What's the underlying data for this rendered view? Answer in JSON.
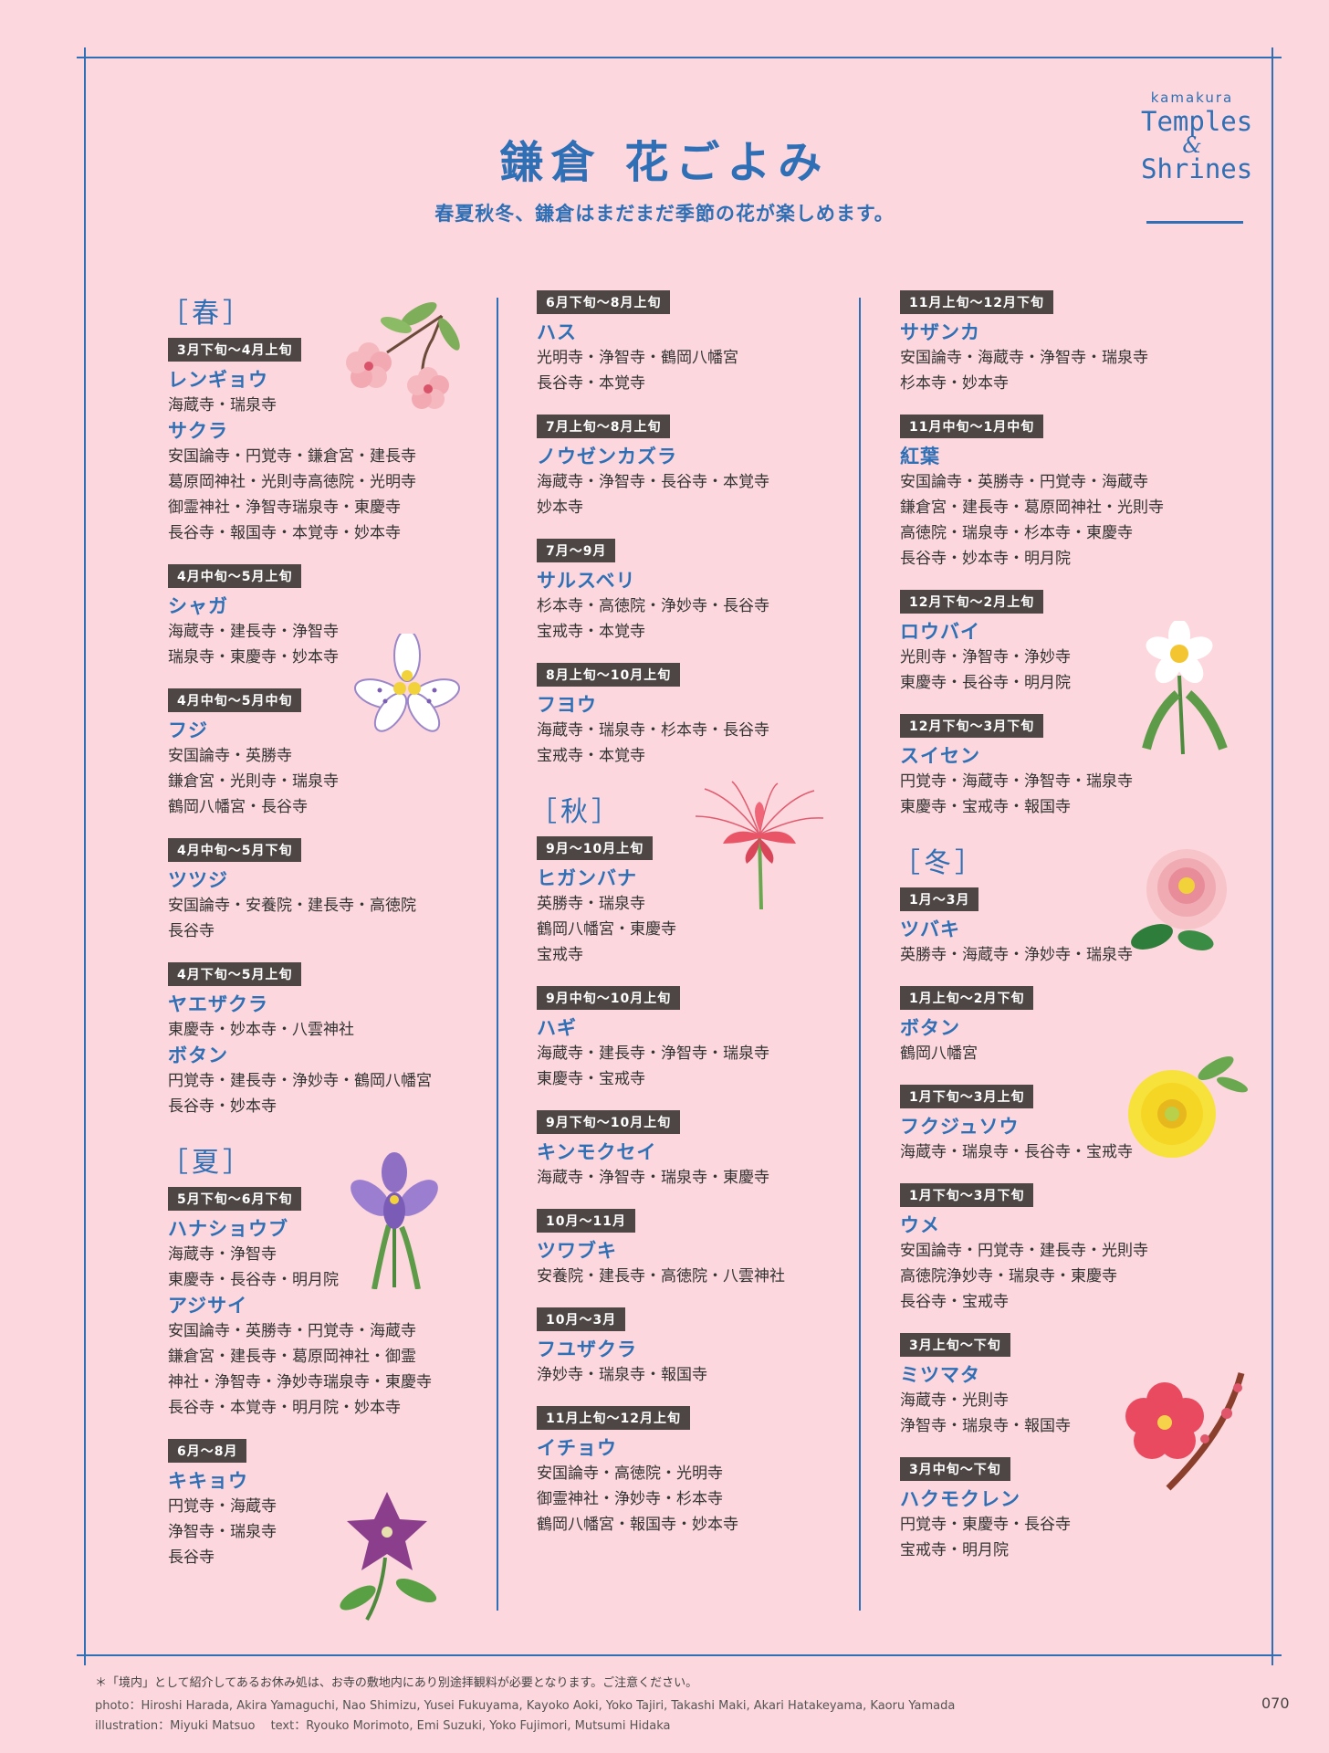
{
  "header": {
    "title": "鎌倉 花ごよみ",
    "subtitle": "春夏秋冬、鎌倉はまだまだ季節の花が楽しめます。",
    "logo": {
      "small": "kamakura",
      "line1": "Temples",
      "amp": "&",
      "line2": "Shrines"
    }
  },
  "columns": [
    {
      "blocks": [
        {
          "season": "［春］",
          "entries": [
            {
              "period": "3月下旬～4月上旬",
              "flowers": [
                {
                  "name": "レンギョウ",
                  "places": "海蔵寺・瑞泉寺"
                },
                {
                  "name": "サクラ",
                  "places": "安国論寺・円覚寺・鎌倉宮・建長寺\n葛原岡神社・光則寺高徳院・光明寺\n御霊神社・浄智寺瑞泉寺・東慶寺\n長谷寺・報国寺・本覚寺・妙本寺"
                }
              ]
            },
            {
              "period": "4月中旬～5月上旬",
              "flowers": [
                {
                  "name": "シャガ",
                  "places": "海蔵寺・建長寺・浄智寺\n瑞泉寺・東慶寺・妙本寺"
                }
              ]
            },
            {
              "period": "4月中旬～5月中旬",
              "flowers": [
                {
                  "name": "フジ",
                  "places": "安国論寺・英勝寺\n鎌倉宮・光則寺・瑞泉寺\n鶴岡八幡宮・長谷寺"
                }
              ]
            },
            {
              "period": "4月中旬～5月下旬",
              "flowers": [
                {
                  "name": "ツツジ",
                  "places": "安国論寺・安養院・建長寺・高徳院\n長谷寺"
                }
              ]
            },
            {
              "period": "4月下旬～5月上旬",
              "flowers": [
                {
                  "name": "ヤエザクラ",
                  "places": "東慶寺・妙本寺・八雲神社"
                },
                {
                  "name": "ボタン",
                  "places": "円覚寺・建長寺・浄妙寺・鶴岡八幡宮\n長谷寺・妙本寺"
                }
              ]
            }
          ]
        },
        {
          "season": "［夏］",
          "entries": [
            {
              "period": "5月下旬～6月下旬",
              "flowers": [
                {
                  "name": "ハナショウブ",
                  "places": "海蔵寺・浄智寺\n東慶寺・長谷寺・明月院"
                },
                {
                  "name": "アジサイ",
                  "places": "安国論寺・英勝寺・円覚寺・海蔵寺\n鎌倉宮・建長寺・葛原岡神社・御霊\n神社・浄智寺・浄妙寺瑞泉寺・東慶寺\n長谷寺・本覚寺・明月院・妙本寺"
                }
              ]
            },
            {
              "period": "6月～8月",
              "flowers": [
                {
                  "name": "キキョウ",
                  "places": "円覚寺・海蔵寺\n浄智寺・瑞泉寺\n長谷寺"
                }
              ]
            }
          ]
        }
      ]
    },
    {
      "blocks": [
        {
          "season": "",
          "entries": [
            {
              "period": "6月下旬～8月上旬",
              "flowers": [
                {
                  "name": "ハス",
                  "places": "光明寺・浄智寺・鶴岡八幡宮\n長谷寺・本覚寺"
                }
              ]
            },
            {
              "period": "7月上旬～8月上旬",
              "flowers": [
                {
                  "name": "ノウゼンカズラ",
                  "places": "海蔵寺・浄智寺・長谷寺・本覚寺\n妙本寺"
                }
              ]
            },
            {
              "period": "7月～9月",
              "flowers": [
                {
                  "name": "サルスベリ",
                  "places": "杉本寺・高徳院・浄妙寺・長谷寺\n宝戒寺・本覚寺"
                }
              ]
            },
            {
              "period": "8月上旬～10月上旬",
              "flowers": [
                {
                  "name": "フヨウ",
                  "places": "海蔵寺・瑞泉寺・杉本寺・長谷寺\n宝戒寺・本覚寺"
                }
              ]
            }
          ]
        },
        {
          "season": "［秋］",
          "entries": [
            {
              "period": "9月～10月上旬",
              "flowers": [
                {
                  "name": "ヒガンバナ",
                  "places": "英勝寺・瑞泉寺\n鶴岡八幡宮・東慶寺\n宝戒寺"
                }
              ]
            },
            {
              "period": "9月中旬～10月上旬",
              "flowers": [
                {
                  "name": "ハギ",
                  "places": "海蔵寺・建長寺・浄智寺・瑞泉寺\n東慶寺・宝戒寺"
                }
              ]
            },
            {
              "period": "9月下旬～10月上旬",
              "flowers": [
                {
                  "name": "キンモクセイ",
                  "places": "海蔵寺・浄智寺・瑞泉寺・東慶寺"
                }
              ]
            },
            {
              "period": "10月～11月",
              "flowers": [
                {
                  "name": "ツワブキ",
                  "places": "安養院・建長寺・高徳院・八雲神社"
                }
              ]
            },
            {
              "period": "10月～3月",
              "flowers": [
                {
                  "name": "フユザクラ",
                  "places": "浄妙寺・瑞泉寺・報国寺"
                }
              ]
            },
            {
              "period": "11月上旬～12月上旬",
              "flowers": [
                {
                  "name": "イチョウ",
                  "places": "安国論寺・高徳院・光明寺\n御霊神社・浄妙寺・杉本寺\n鶴岡八幡宮・報国寺・妙本寺"
                }
              ]
            }
          ]
        }
      ]
    },
    {
      "blocks": [
        {
          "season": "",
          "entries": [
            {
              "period": "11月上旬～12月下旬",
              "flowers": [
                {
                  "name": "サザンカ",
                  "places": "安国論寺・海蔵寺・浄智寺・瑞泉寺\n杉本寺・妙本寺"
                }
              ]
            },
            {
              "period": "11月中旬～1月中旬",
              "flowers": [
                {
                  "name": "紅葉",
                  "places": "安国論寺・英勝寺・円覚寺・海蔵寺\n鎌倉宮・建長寺・葛原岡神社・光則寺\n高徳院・瑞泉寺・杉本寺・東慶寺\n長谷寺・妙本寺・明月院"
                }
              ]
            },
            {
              "period": "12月下旬～2月上旬",
              "flowers": [
                {
                  "name": "ロウバイ",
                  "places": "光則寺・浄智寺・浄妙寺\n東慶寺・長谷寺・明月院"
                }
              ]
            },
            {
              "period": "12月下旬～3月下旬",
              "flowers": [
                {
                  "name": "スイセン",
                  "places": "円覚寺・海蔵寺・浄智寺・瑞泉寺\n東慶寺・宝戒寺・報国寺"
                }
              ]
            }
          ]
        },
        {
          "season": "［冬］",
          "entries": [
            {
              "period": "1月～3月",
              "flowers": [
                {
                  "name": "ツバキ",
                  "places": "英勝寺・海蔵寺・浄妙寺・瑞泉寺"
                }
              ]
            },
            {
              "period": "1月上旬～2月下旬",
              "flowers": [
                {
                  "name": "ボタン",
                  "places": "鶴岡八幡宮"
                }
              ]
            },
            {
              "period": "1月下旬～3月上旬",
              "flowers": [
                {
                  "name": "フクジュソウ",
                  "places": "海蔵寺・瑞泉寺・長谷寺・宝戒寺"
                }
              ]
            },
            {
              "period": "1月下旬～3月下旬",
              "flowers": [
                {
                  "name": "ウメ",
                  "places": "安国論寺・円覚寺・建長寺・光則寺\n高徳院浄妙寺・瑞泉寺・東慶寺\n長谷寺・宝戒寺"
                }
              ]
            },
            {
              "period": "3月上旬～下旬",
              "flowers": [
                {
                  "name": "ミツマタ",
                  "places": "海蔵寺・光則寺\n浄智寺・瑞泉寺・報国寺"
                }
              ]
            },
            {
              "period": "3月中旬～下旬",
              "flowers": [
                {
                  "name": "ハクモクレン",
                  "places": "円覚寺・東慶寺・長谷寺\n宝戒寺・明月院"
                }
              ]
            }
          ]
        }
      ]
    }
  ],
  "footer": {
    "note": "＊「境内」として紹介してあるお休み処は、お寺の敷地内にあり別途拝観料が必要となります。ご注意ください。",
    "photo": "photo：Hiroshi Harada, Akira Yamaguchi, Nao Shimizu, Yusei Fukuyama, Kayoko Aoki, Yoko Tajiri, Takashi Maki, Akari Hatakeyama, Kaoru Yamada",
    "illustration": "illustration：Miyuki Matsuo　 text：Ryouko Morimoto, Emi Suzuki, Yoko Fujimori, Mutsumi Hidaka",
    "page": "070"
  },
  "colors": {
    "background": "#fcd7dd",
    "accent_blue": "#2e6fb5",
    "badge": "#4d4644"
  }
}
